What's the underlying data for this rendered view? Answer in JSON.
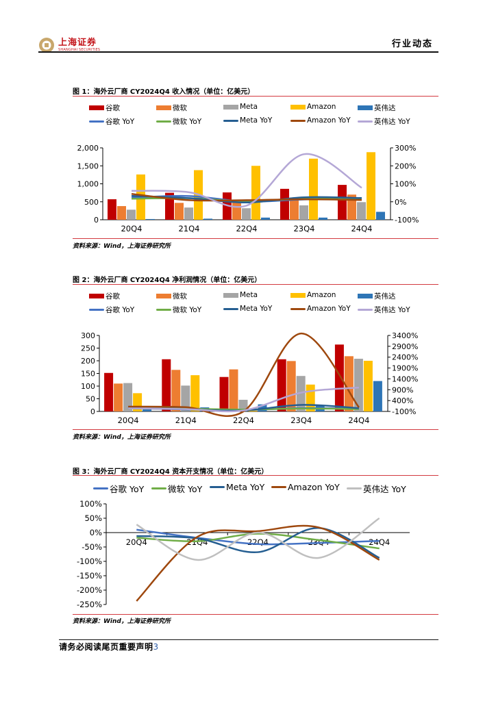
{
  "header": {
    "logo_cn": "上海证券",
    "logo_en": "SHANGHAI SECURITIES",
    "section": "行业动态"
  },
  "colors": {
    "google": "#c00000",
    "microsoft": "#ed7d31",
    "meta": "#a5a5a5",
    "amazon": "#ffc000",
    "nvidia": "#2e75b6",
    "google_yoy": "#4472c4",
    "microsoft_yoy": "#70ad47",
    "meta_yoy": "#255e91",
    "amazon_yoy": "#9e480e",
    "nvidia_yoy": "#b4a7d6",
    "nvidia_yoy_3": "#bfbfbf",
    "rule": "#d3393f"
  },
  "legend": {
    "bars": [
      "谷歌",
      "微软",
      "Meta",
      "Amazon",
      "英伟达"
    ],
    "lines": [
      "谷歌 YoY",
      "微软 YoY",
      "Meta YoY",
      "Amazon YoY",
      "英伟达 YoY"
    ]
  },
  "figures": [
    {
      "title": "图 1：海外云厂商 CY2024Q4 收入情况（单位：亿美元）",
      "source": "资料来源：Wind，上海证券研究所"
    },
    {
      "title": "图 2：海外云厂商 CY2024Q4 净利润情况（单位：亿美元）",
      "source": "资料来源：Wind，上海证券研究所"
    },
    {
      "title": "图 3：海外云厂商 CY2024Q4 资本开支情况（单位：亿美元）",
      "source": "资料来源：Wind，上海证券研究所"
    }
  ],
  "footer": {
    "text": "请务必阅读尾页重要声明",
    "page": "3"
  },
  "chart_data": [
    {
      "type": "bar",
      "categories": [
        "20Q4",
        "21Q4",
        "22Q4",
        "23Q4",
        "24Q4"
      ],
      "ylim": [
        0,
        2000
      ],
      "yticks": [
        "0",
        "500",
        "1,000",
        "1,500",
        "2,000"
      ],
      "y2lim": [
        -100,
        300
      ],
      "y2ticks": [
        "-100%",
        "0%",
        "100%",
        "200%",
        "300%"
      ],
      "series": [
        {
          "name": "谷歌",
          "values": [
            570,
            750,
            760,
            860,
            970
          ]
        },
        {
          "name": "微软",
          "values": [
            380,
            470,
            520,
            620,
            700
          ]
        },
        {
          "name": "Meta",
          "values": [
            280,
            340,
            320,
            400,
            490
          ]
        },
        {
          "name": "Amazon",
          "values": [
            1260,
            1380,
            1500,
            1700,
            1880
          ]
        },
        {
          "name": "英伟达",
          "values": [
            20,
            30,
            60,
            60,
            220
          ]
        }
      ],
      "lines": [
        {
          "name": "谷歌 YoY",
          "values": [
            23,
            32,
            1,
            13,
            12
          ]
        },
        {
          "name": "微软 YoY",
          "values": [
            17,
            20,
            2,
            18,
            12
          ]
        },
        {
          "name": "Meta YoY",
          "values": [
            33,
            20,
            -4,
            25,
            21
          ]
        },
        {
          "name": "Amazon YoY",
          "values": [
            44,
            9,
            9,
            14,
            10
          ]
        },
        {
          "name": "英伟达 YoY",
          "values": [
            61,
            53,
            -21,
            265,
            78
          ]
        }
      ]
    },
    {
      "type": "bar",
      "categories": [
        "20Q4",
        "21Q4",
        "22Q4",
        "23Q4",
        "24Q4"
      ],
      "ylim": [
        0,
        300
      ],
      "yticks": [
        "0",
        "50",
        "100",
        "150",
        "200",
        "250",
        "300"
      ],
      "y2lim": [
        -100,
        3400
      ],
      "y2ticks": [
        "-100%",
        "400%",
        "900%",
        "1400%",
        "1900%",
        "2400%",
        "2900%",
        "3400%"
      ],
      "series": [
        {
          "name": "谷歌",
          "values": [
            152,
            206,
            136,
            206,
            264
          ]
        },
        {
          "name": "微软",
          "values": [
            110,
            164,
            166,
            199,
            218
          ]
        },
        {
          "name": "Meta",
          "values": [
            112,
            102,
            46,
            140,
            208
          ]
        },
        {
          "name": "Amazon",
          "values": [
            72,
            143,
            3,
            106,
            200
          ]
        },
        {
          "name": "英伟达",
          "values": [
            12,
            16,
            28,
            24,
            120
          ]
        }
      ],
      "lines": [
        {
          "name": "谷歌 YoY",
          "values": [
            43,
            36,
            -34,
            52,
            28
          ]
        },
        {
          "name": "微软 YoY",
          "values": [
            33,
            21,
            -12,
            33,
            10
          ]
        },
        {
          "name": "Meta YoY",
          "values": [
            53,
            -8,
            -55,
            201,
            49
          ]
        },
        {
          "name": "Amazon YoY",
          "values": [
            121,
            98,
            -98,
            3490,
            88
          ]
        },
        {
          "name": "英伟达 YoY",
          "values": [
            43,
            6,
            -53,
            765,
            1000
          ]
        }
      ]
    },
    {
      "type": "line",
      "categories": [
        "20Q4",
        "21Q4",
        "22Q4",
        "23Q4",
        "24Q4"
      ],
      "ylim": [
        -250,
        100
      ],
      "yticks": [
        "-250%",
        "-200%",
        "-150%",
        "-100%",
        "-50%",
        "0%",
        "50%",
        "100%"
      ],
      "series": [
        {
          "name": "谷歌 YoY",
          "values": [
            10,
            -18,
            -40,
            -36,
            -29
          ]
        },
        {
          "name": "微软 YoY",
          "values": [
            -18,
            -30,
            -4,
            -26,
            -55
          ]
        },
        {
          "name": "Meta YoY",
          "values": [
            -12,
            -20,
            -68,
            16,
            -88
          ]
        },
        {
          "name": "Amazon YoY",
          "values": [
            -238,
            -15,
            5,
            18,
            -95
          ]
        },
        {
          "name": "英伟达 YoY",
          "values": [
            28,
            -95,
            0,
            -88,
            50
          ]
        }
      ]
    }
  ]
}
